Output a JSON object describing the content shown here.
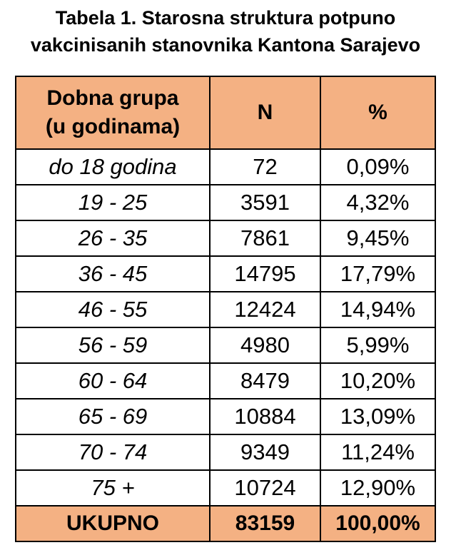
{
  "title": {
    "line1": "Tabela 1. Starosna struktura potpuno",
    "line2": "vakcinisanih stanovnika Kantona Sarajevo"
  },
  "table": {
    "headers": {
      "group_line1": "Dobna grupa",
      "group_line2": "(u godinama)",
      "n": "N",
      "percent": "%"
    },
    "rows": [
      {
        "group": "do 18 godina",
        "n": "72",
        "percent": "0,09%"
      },
      {
        "group": "19 - 25",
        "n": "3591",
        "percent": "4,32%"
      },
      {
        "group": "26 - 35",
        "n": "7861",
        "percent": "9,45%"
      },
      {
        "group": "36 - 45",
        "n": "14795",
        "percent": "17,79%"
      },
      {
        "group": "46 - 55",
        "n": "12424",
        "percent": "14,94%"
      },
      {
        "group": "56 - 59",
        "n": "4980",
        "percent": "5,99%"
      },
      {
        "group": "60 - 64",
        "n": "8479",
        "percent": "10,20%"
      },
      {
        "group": "65 - 69",
        "n": "10884",
        "percent": "13,09%"
      },
      {
        "group": "70 - 74",
        "n": "9349",
        "percent": "11,24%"
      },
      {
        "group": "75 +",
        "n": "10724",
        "percent": "12,90%"
      }
    ],
    "total": {
      "label": "UKUPNO",
      "n": "83159",
      "percent": "100,00%"
    }
  },
  "colors": {
    "header_fill": "#F4B183",
    "border": "#000000",
    "text": "#000000"
  }
}
